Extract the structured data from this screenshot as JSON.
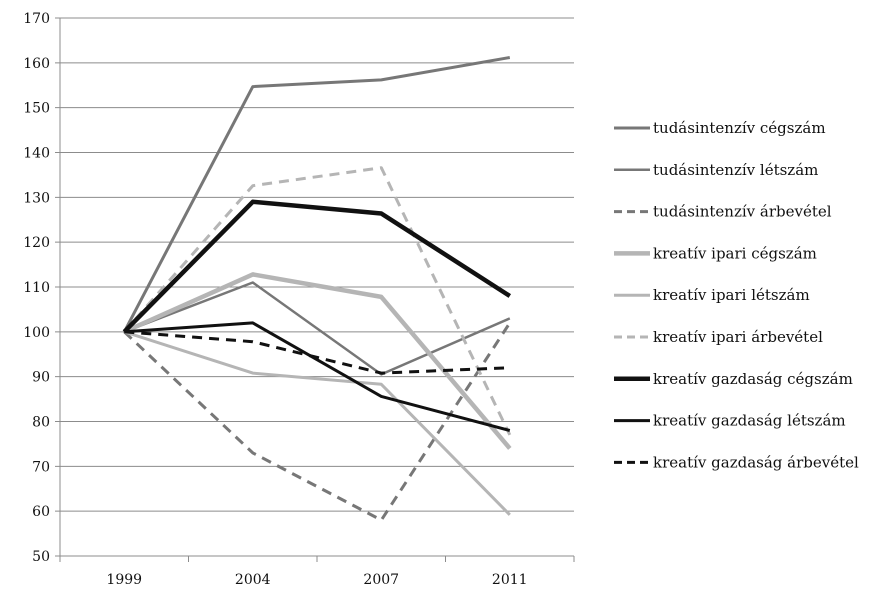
{
  "chart_data": {
    "type": "line",
    "title": "",
    "xlabel": "",
    "ylabel": "",
    "categories": [
      "1999",
      "2004",
      "2007",
      "2011"
    ],
    "ylim": [
      50,
      170
    ],
    "yticks": [
      50,
      60,
      70,
      80,
      90,
      100,
      110,
      120,
      130,
      140,
      150,
      160,
      170
    ],
    "grid": "horizontal",
    "legend": "right",
    "series": [
      {
        "name": "tudásintenzív cégszám",
        "values": [
          100,
          154.7,
          156.2,
          161.2
        ],
        "color": "#777777",
        "dash": "solid",
        "weight": "medium"
      },
      {
        "name": "tudásintenzív létszám",
        "values": [
          100,
          111,
          90.5,
          103
        ],
        "color": "#777777",
        "dash": "solid",
        "weight": "thin"
      },
      {
        "name": "tudásintenzív árbevétel",
        "values": [
          100,
          73,
          58,
          102
        ],
        "color": "#777777",
        "dash": "dashed",
        "weight": "medium"
      },
      {
        "name": "kreatív ipari cégszám",
        "values": [
          100,
          112.8,
          107.8,
          74
        ],
        "color": "#b5b5b5",
        "dash": "solid",
        "weight": "thick"
      },
      {
        "name": "kreatív ipari létszám",
        "values": [
          100,
          90.8,
          88.3,
          59.2
        ],
        "color": "#b5b5b5",
        "dash": "solid",
        "weight": "medium"
      },
      {
        "name": "kreatív ipari árbevétel",
        "values": [
          100,
          132.6,
          136.6,
          77
        ],
        "color": "#b5b5b5",
        "dash": "dashed",
        "weight": "medium"
      },
      {
        "name": "kreatív gazdaság cégszám",
        "values": [
          100,
          129,
          126.4,
          108
        ],
        "color": "#111111",
        "dash": "solid",
        "weight": "thick"
      },
      {
        "name": "kreatív gazdaság létszám",
        "values": [
          100,
          102,
          85.6,
          78
        ],
        "color": "#111111",
        "dash": "solid",
        "weight": "medium"
      },
      {
        "name": "kreatív gazdaság árbevétel",
        "values": [
          100,
          97.8,
          90.8,
          92
        ],
        "color": "#111111",
        "dash": "dashed",
        "weight": "medium"
      }
    ]
  }
}
